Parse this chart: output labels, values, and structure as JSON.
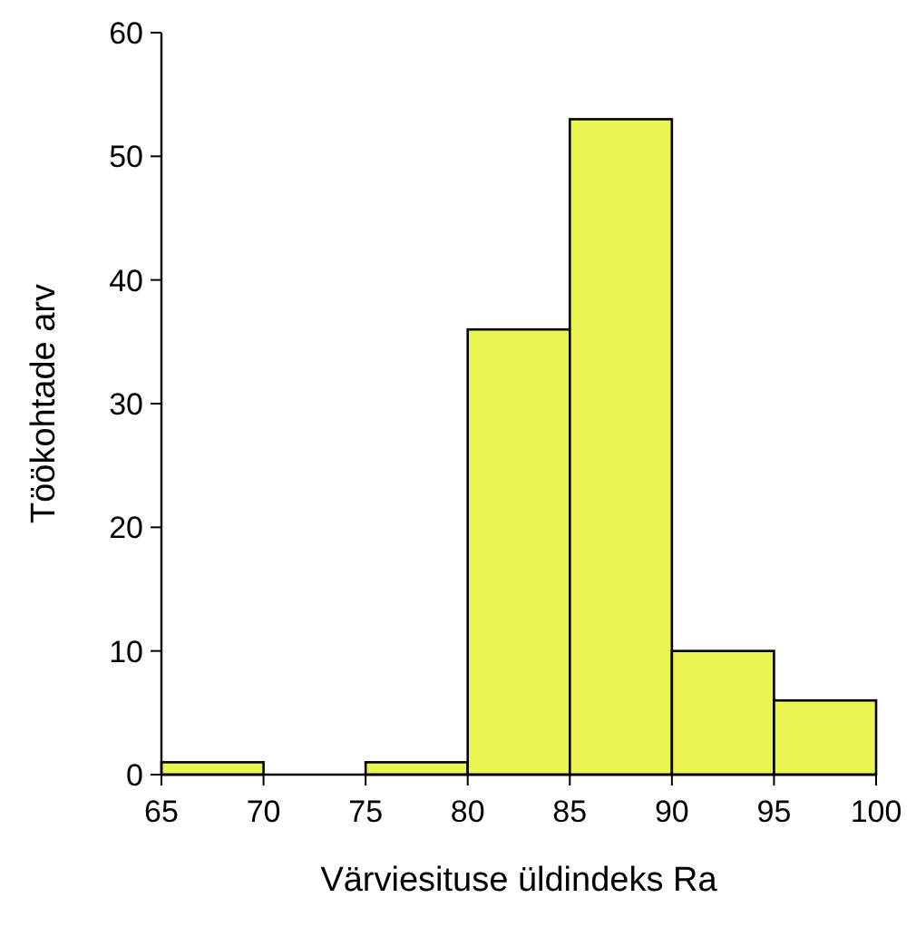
{
  "chart_data": {
    "type": "histogram",
    "xlabel": "Värviesituse üldindeks Ra",
    "ylabel": "Töökohtade arv",
    "bins": [
      65,
      70,
      75,
      80,
      85,
      90,
      95,
      100
    ],
    "values": [
      1,
      0,
      1,
      36,
      53,
      10,
      6
    ],
    "color": "#ebf551",
    "xlim": [
      65,
      100
    ],
    "xticks": [
      65,
      70,
      75,
      80,
      85,
      90,
      95,
      100
    ],
    "ylim": [
      0,
      60
    ],
    "yticks": [
      0,
      10,
      20,
      30,
      40,
      50,
      60
    ],
    "grid": false
  }
}
